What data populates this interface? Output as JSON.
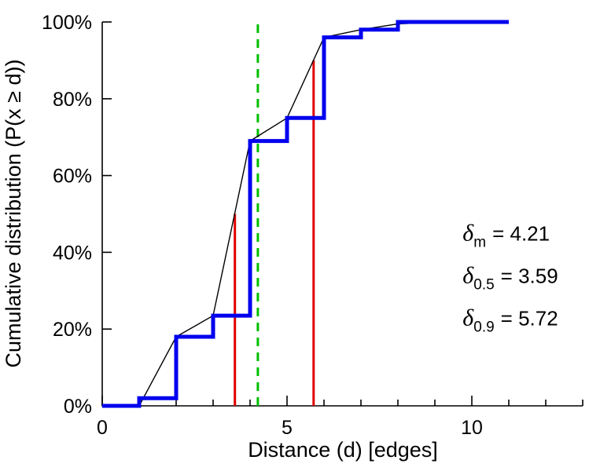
{
  "chart_data": {
    "type": "line",
    "title": "",
    "xlabel": "Distance (d) [edges]",
    "ylabel": "Cumulative distribution (P(x ≥ d))",
    "xlim": [
      0,
      13
    ],
    "ylim": [
      0,
      100
    ],
    "x_major_ticks": [
      0,
      5,
      10
    ],
    "x_minor_ticks": [
      0,
      1,
      2,
      3,
      4,
      5,
      6,
      7,
      8,
      9,
      10,
      11,
      12,
      13
    ],
    "y_major_ticks": [
      0,
      20,
      40,
      60,
      80,
      100
    ],
    "y_tick_suffix": "%",
    "grid": false,
    "legend": "none",
    "series": [
      {
        "name": "interpolated-cdf-line",
        "type": "line",
        "color": "#000000",
        "width": 1.4,
        "points": [
          [
            1,
            0
          ],
          [
            2,
            18
          ],
          [
            3,
            23.5
          ],
          [
            4,
            69
          ],
          [
            5,
            75
          ],
          [
            6,
            96
          ],
          [
            7,
            98
          ],
          [
            8,
            99.5
          ],
          [
            9.3,
            100
          ],
          [
            11,
            100
          ]
        ]
      },
      {
        "name": "empirical-cdf-step",
        "type": "step-post",
        "color": "#0000ee",
        "width": 5,
        "points": [
          [
            0,
            0
          ],
          [
            1,
            2
          ],
          [
            2,
            18
          ],
          [
            3,
            23.5
          ],
          [
            4,
            69
          ],
          [
            5,
            75
          ],
          [
            6,
            96
          ],
          [
            7,
            98
          ],
          [
            8,
            100
          ],
          [
            11,
            100
          ]
        ]
      }
    ],
    "vlines": [
      {
        "name": "mean-vline",
        "x": 4.21,
        "y0": 0,
        "y1": 100,
        "color": "#00bf00",
        "width": 3,
        "dash": "11,8"
      },
      {
        "name": "median-vline",
        "x": 3.59,
        "y0": 0,
        "y1": 50,
        "color": "#e00000",
        "width": 3,
        "dash": ""
      },
      {
        "name": "p90-vline",
        "x": 5.72,
        "y0": 0,
        "y1": 90,
        "color": "#e00000",
        "width": 3,
        "dash": ""
      }
    ],
    "annotations": [
      {
        "name": "delta-mean-annotation",
        "symbol": "δ",
        "sub": "m",
        "text": "= 4.21",
        "x": 9.75,
        "y": 43
      },
      {
        "name": "delta-median-annotation",
        "symbol": "δ",
        "sub": "0.5",
        "text": "= 3.59",
        "x": 9.75,
        "y": 32
      },
      {
        "name": "delta-p90-annotation",
        "symbol": "δ",
        "sub": "0.9",
        "text": "= 5.72",
        "x": 9.75,
        "y": 21
      }
    ]
  }
}
